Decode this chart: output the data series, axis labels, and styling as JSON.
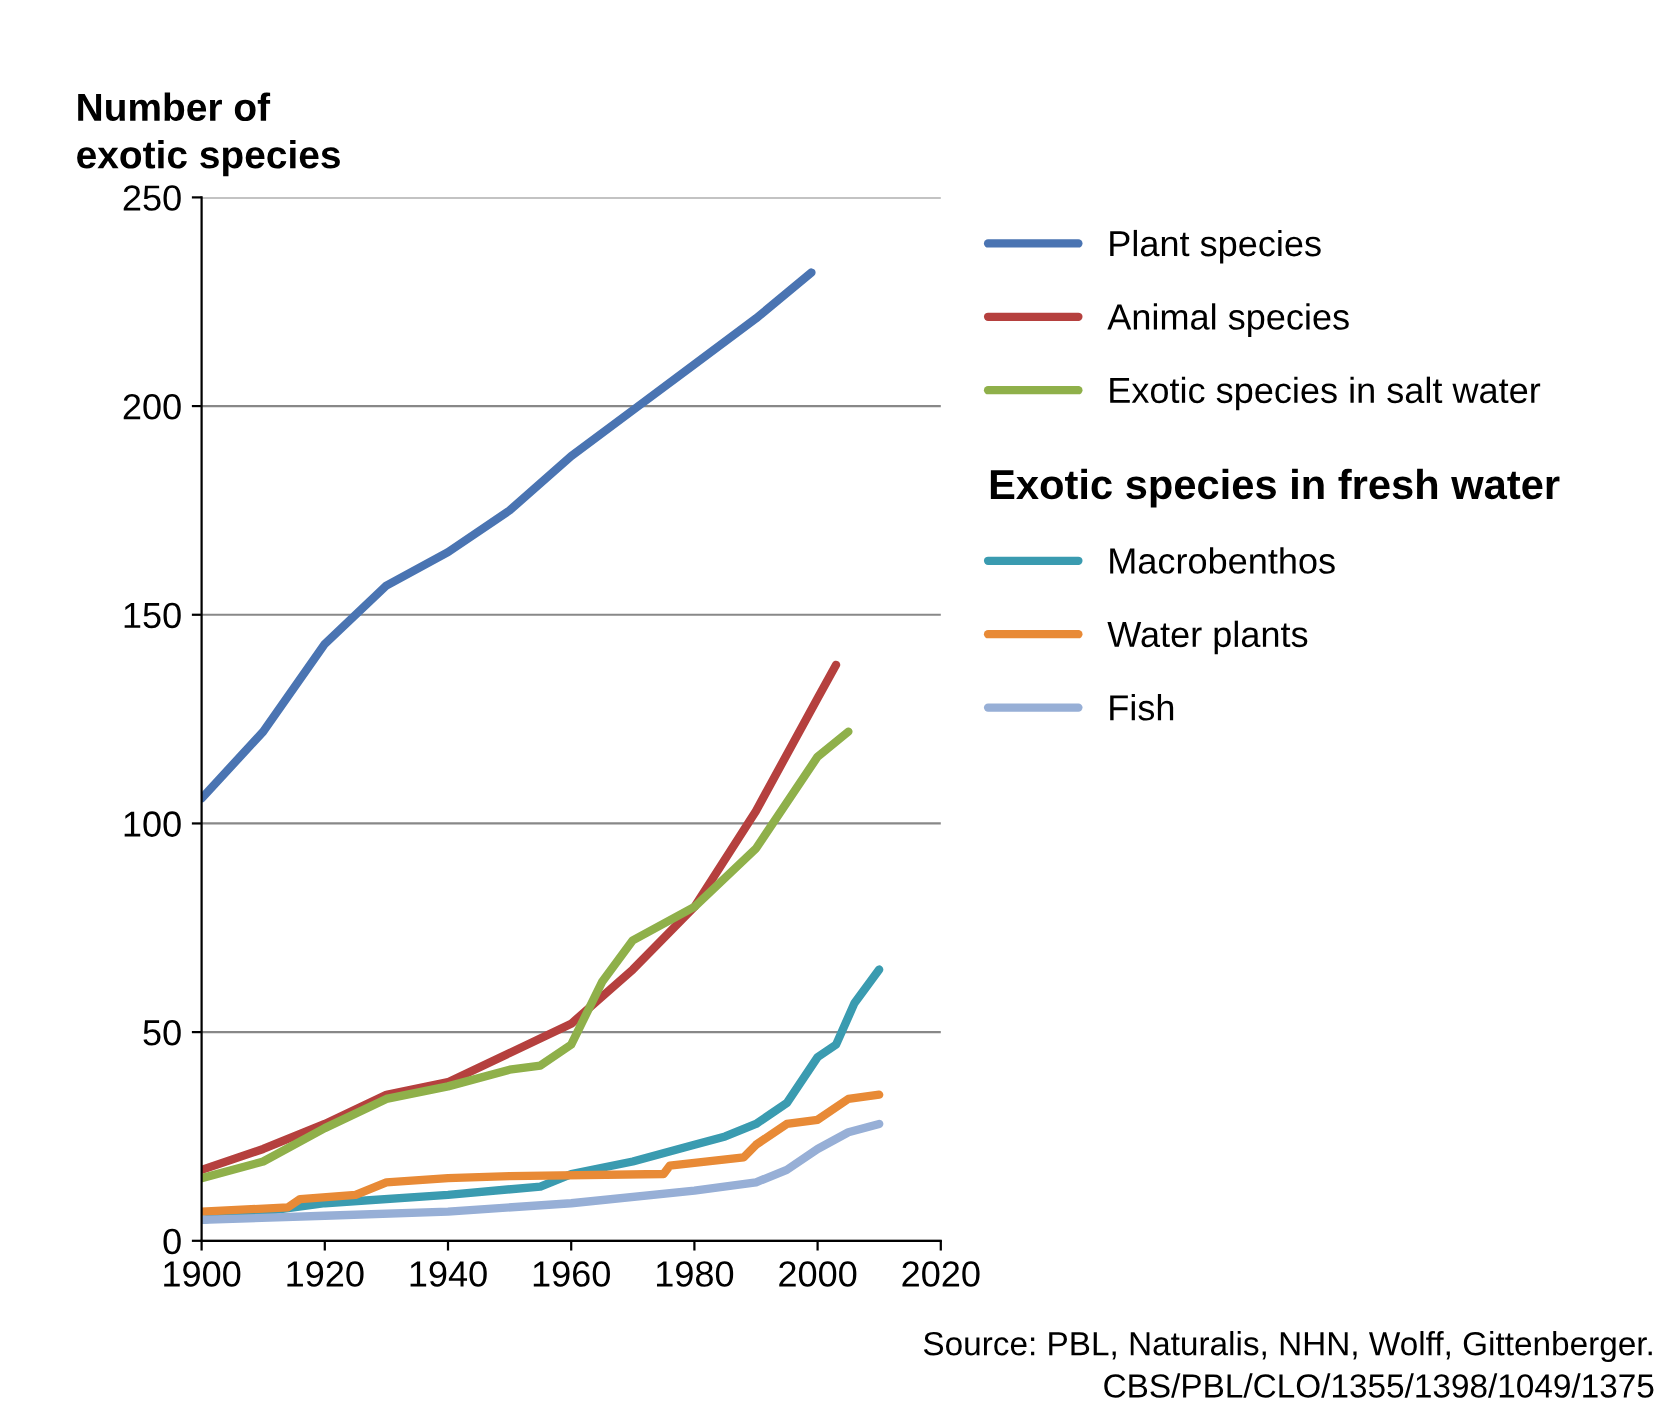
{
  "chart_data": {
    "type": "line",
    "ylabel": "Number of\nexotic species",
    "legend_title": "Exotic species in fresh water",
    "legend": "right",
    "grid": "y",
    "xlim": [
      1900,
      2020
    ],
    "xticks": [
      1900,
      1920,
      1940,
      1960,
      1980,
      2000,
      2020
    ],
    "ylim": [
      0,
      250
    ],
    "yticks": [
      0,
      50,
      100,
      150,
      200,
      250
    ],
    "annotations": [
      "Source: PBL, Naturalis, NHN, Wolff, Gittenberger.",
      "CBS/PBL/CLO/1355/1398/1049/1375"
    ],
    "series": [
      {
        "name": "Plant species",
        "color": "#4a74b2",
        "x": [
          1900,
          1910,
          1920,
          1930,
          1940,
          1950,
          1960,
          1970,
          1980,
          1990,
          1999
        ],
        "values": [
          106,
          122,
          143,
          157,
          165,
          175,
          188,
          199,
          210,
          221,
          232
        ]
      },
      {
        "name": "Animal species",
        "color": "#b5403e",
        "x": [
          1900,
          1910,
          1920,
          1930,
          1940,
          1950,
          1960,
          1970,
          1980,
          1990,
          2000,
          2003
        ],
        "values": [
          17,
          22,
          28,
          35,
          38,
          45,
          52,
          65,
          80,
          103,
          130,
          138
        ]
      },
      {
        "name": "Exotic species in salt water",
        "color": "#8fb04a",
        "x": [
          1900,
          1910,
          1920,
          1930,
          1940,
          1950,
          1955,
          1960,
          1965,
          1970,
          1980,
          1990,
          2000,
          2005
        ],
        "values": [
          15,
          19,
          27,
          34,
          37,
          41,
          42,
          47,
          62,
          72,
          80,
          94,
          116,
          122
        ]
      },
      {
        "name": "Macrobenthos",
        "color": "#3a9bb0",
        "x": [
          1900,
          1920,
          1940,
          1955,
          1960,
          1970,
          1980,
          1985,
          1990,
          1995,
          2000,
          2003,
          2006,
          2010
        ],
        "values": [
          5,
          9,
          11,
          13,
          16,
          19,
          23,
          25,
          28,
          33,
          44,
          47,
          57,
          65
        ]
      },
      {
        "name": "Water plants",
        "color": "#e88a36",
        "x": [
          1900,
          1914,
          1916,
          1925,
          1930,
          1940,
          1950,
          1975,
          1976,
          1988,
          1990,
          1995,
          2000,
          2005,
          2010
        ],
        "values": [
          7,
          8,
          10,
          11,
          14,
          15,
          15.5,
          16,
          18,
          20,
          23,
          28,
          29,
          34,
          35
        ]
      },
      {
        "name": "Fish",
        "color": "#97afd6",
        "x": [
          1900,
          1920,
          1940,
          1960,
          1980,
          1990,
          1995,
          2000,
          2005,
          2010
        ],
        "values": [
          5,
          6,
          7,
          9,
          12,
          14,
          17,
          22,
          26,
          28
        ]
      }
    ]
  }
}
